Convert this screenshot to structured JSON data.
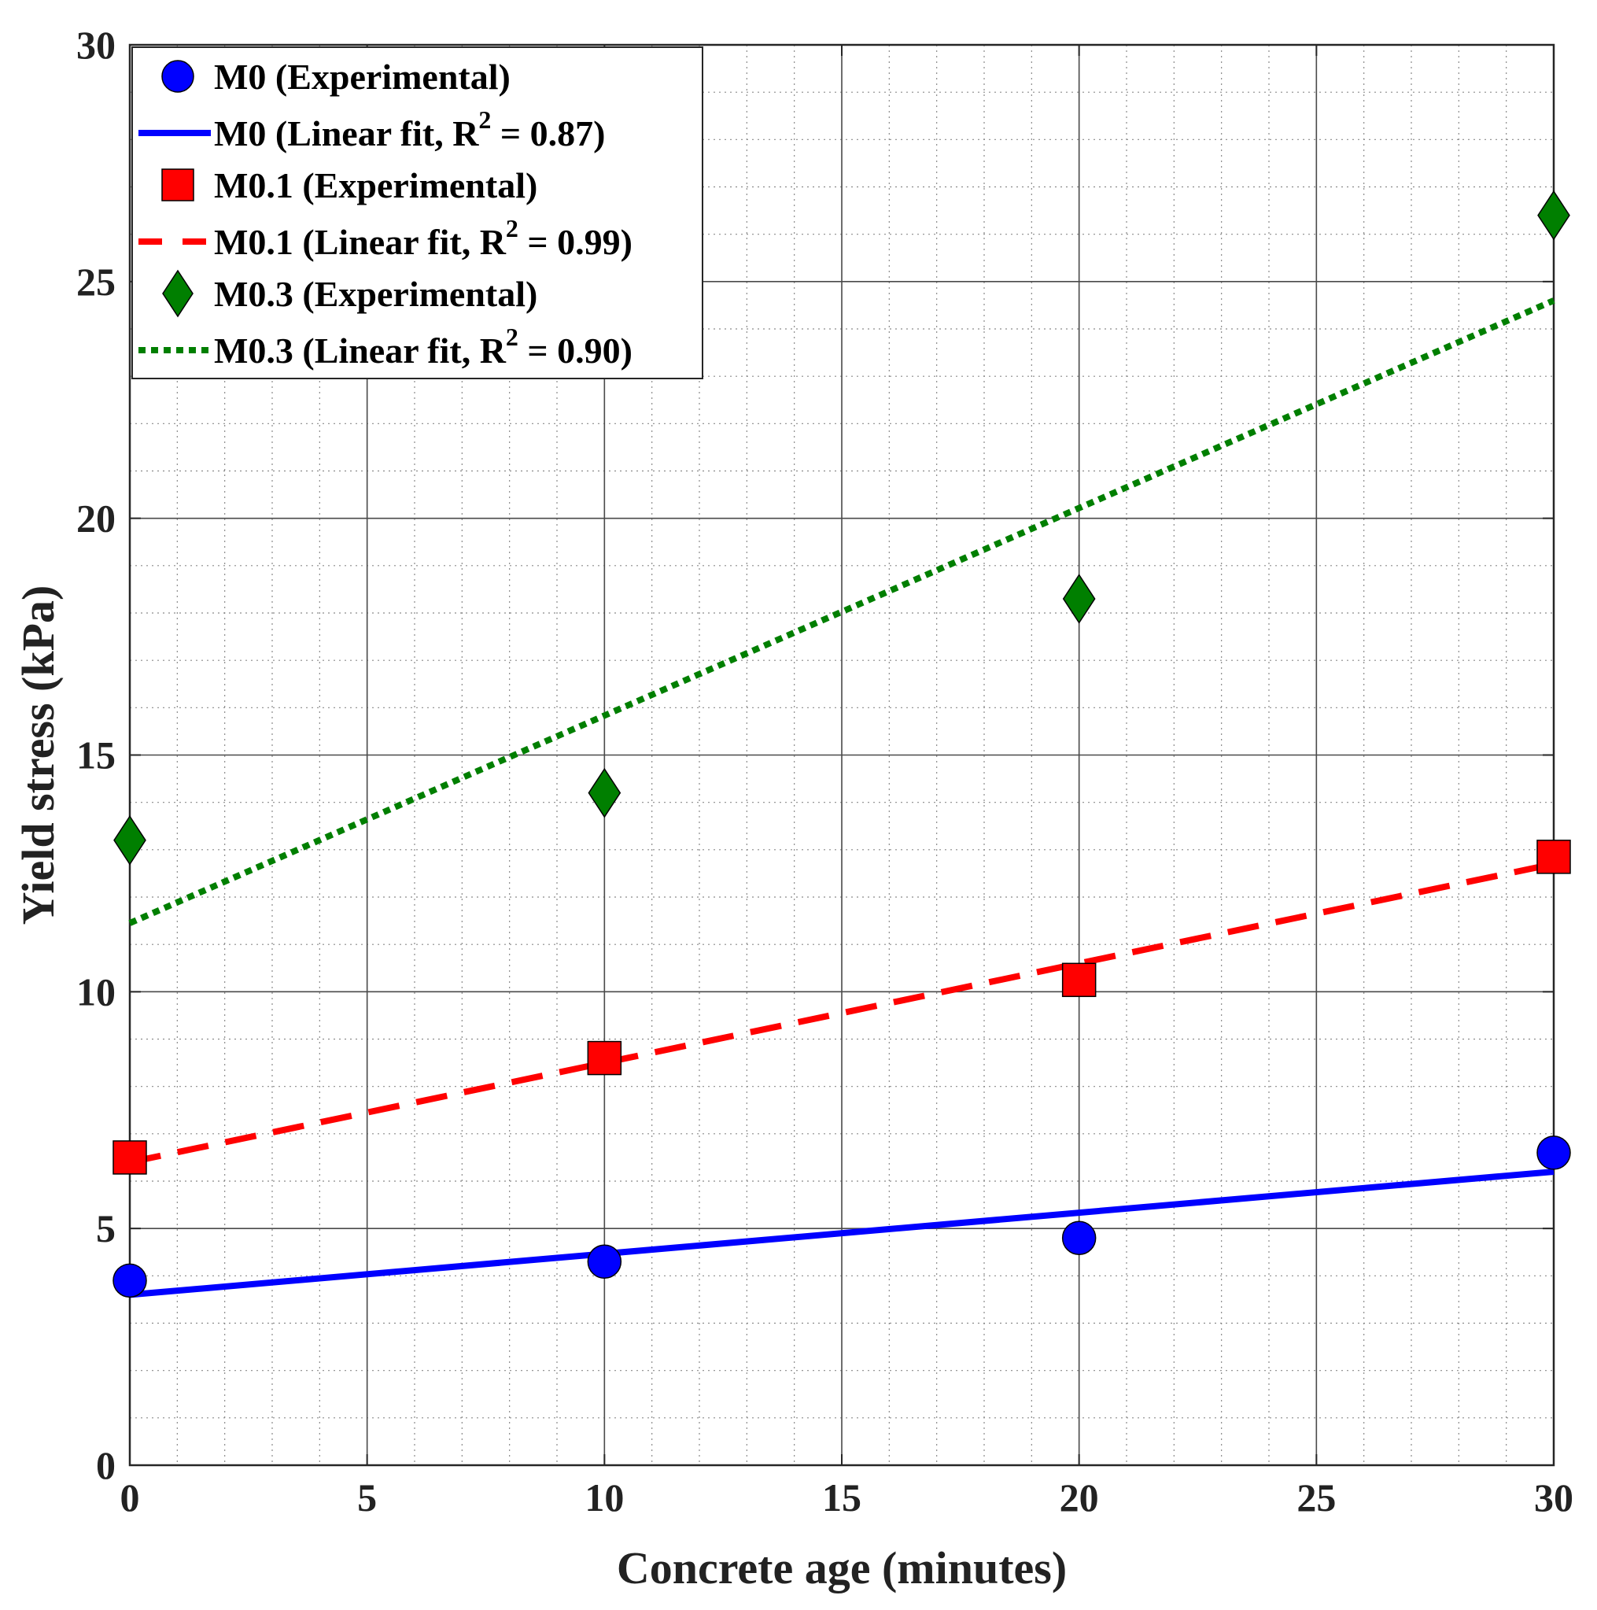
{
  "chart_data": {
    "type": "scatter",
    "title": "",
    "xlabel": "Concrete age (minutes)",
    "ylabel": "Yield stress (kPa)",
    "xlim": [
      0,
      30
    ],
    "ylim": [
      0,
      30
    ],
    "xticks": [
      0,
      5,
      10,
      15,
      20,
      25,
      30
    ],
    "yticks": [
      0,
      5,
      10,
      15,
      20,
      25,
      30
    ],
    "xtick_labels": [
      "0",
      "5",
      "10",
      "15",
      "20",
      "25",
      "30"
    ],
    "ytick_labels": [
      "0",
      "5",
      "10",
      "15",
      "20",
      "25",
      "30"
    ],
    "grid": true,
    "minor_grid": true,
    "legend_position": "top-left",
    "series": [
      {
        "name": "M0 (Experimental)",
        "kind": "scatter",
        "marker": "circle",
        "color": "#0000ff",
        "x": [
          0,
          10,
          20,
          30
        ],
        "y": [
          3.9,
          4.3,
          4.8,
          6.6
        ]
      },
      {
        "name": "M0 (Linear fit, R",
        "r2_value": "0.87",
        "kind": "line",
        "line_style": "solid",
        "color": "#0000ff",
        "x": [
          0,
          30
        ],
        "y": [
          3.6,
          6.2
        ]
      },
      {
        "name": "M0.1 (Experimental)",
        "kind": "scatter",
        "marker": "square",
        "color": "#ff0000",
        "x": [
          0,
          10,
          20,
          30
        ],
        "y": [
          6.5,
          8.6,
          10.25,
          12.85
        ]
      },
      {
        "name": "M0.1 (Linear fit, R",
        "r2_value": "0.99",
        "kind": "line",
        "line_style": "dashed",
        "color": "#ff0000",
        "x": [
          0,
          30
        ],
        "y": [
          6.4,
          12.7
        ]
      },
      {
        "name": "M0.3 (Experimental)",
        "kind": "scatter",
        "marker": "diamond",
        "color": "#007f00",
        "x": [
          0,
          10,
          20,
          30
        ],
        "y": [
          13.2,
          14.2,
          18.3,
          26.4
        ]
      },
      {
        "name": "M0.3 (Linear fit, R",
        "r2_value": "0.90",
        "kind": "line",
        "line_style": "dotted",
        "color": "#007f00",
        "x": [
          0,
          30
        ],
        "y": [
          11.45,
          24.6
        ]
      }
    ],
    "legend": [
      {
        "label": "M0 (Experimental)",
        "series_index": 0
      },
      {
        "label_pre": "M0 (Linear fit, R",
        "sup": "2",
        "label_post": " = 0.87)",
        "series_index": 1
      },
      {
        "label": "M0.1 (Experimental)",
        "series_index": 2
      },
      {
        "label_pre": "M0.1 (Linear fit, R",
        "sup": "2",
        "label_post": " = 0.99)",
        "series_index": 3
      },
      {
        "label": "M0.3 (Experimental)",
        "series_index": 4
      },
      {
        "label_pre": "M0.3 (Linear fit, R",
        "sup": "2",
        "label_post": " = 0.90)",
        "series_index": 5
      }
    ]
  }
}
